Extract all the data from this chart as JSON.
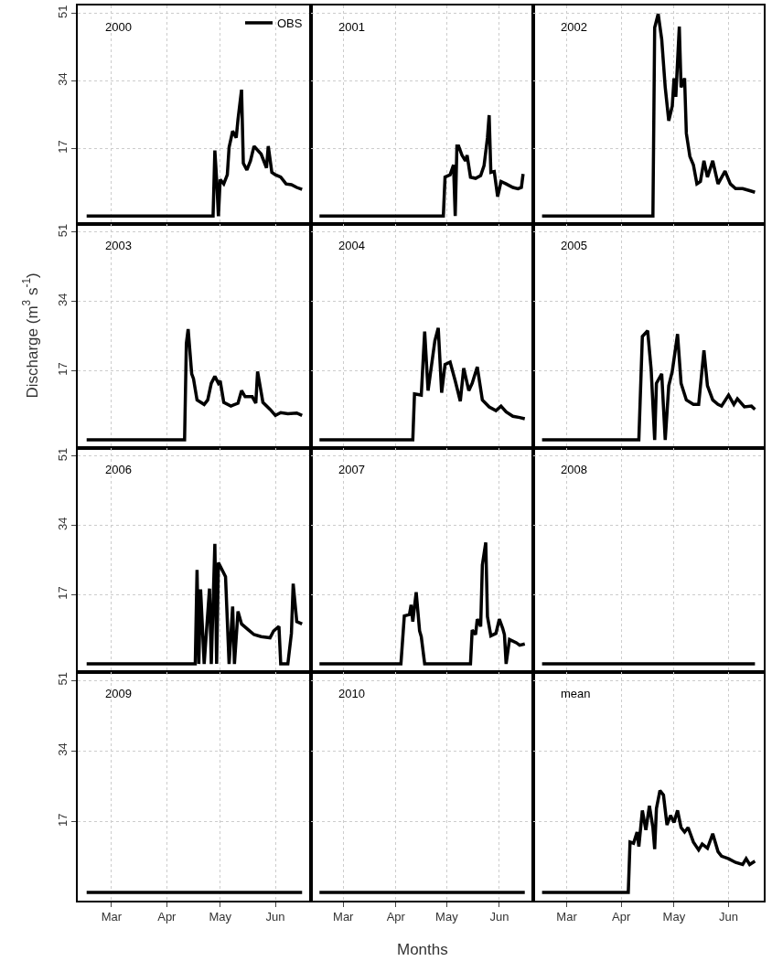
{
  "chart_data": [
    {
      "type": "line",
      "title": "2000",
      "legend": "top right",
      "tick_labels": "y",
      "grid": true,
      "line_style": "solid",
      "xlim": [
        "--02-10",
        "--06-21"
      ],
      "xticks": [
        {
          "value": "--03-01",
          "label": "Mar"
        },
        {
          "value": "--04-01",
          "label": "Apr"
        },
        {
          "value": "--05-01",
          "label": "May"
        },
        {
          "value": "--06-01",
          "label": "Jun"
        }
      ],
      "ylim": [
        -2,
        53
      ],
      "yticks": [
        17,
        34,
        51
      ],
      "x": [
        "--02-15",
        "--04-27",
        "--04-28",
        "--04-29",
        "--04-30",
        "--05-01",
        "--05-03",
        "--05-05",
        "--05-06",
        "--05-08",
        "--05-10",
        "--05-11",
        "--05-13",
        "--05-14",
        "--05-16",
        "--05-18",
        "--05-20",
        "--05-24",
        "--05-27",
        "--05-28",
        "--05-30",
        "--06-01",
        "--06-04",
        "--06-07",
        "--06-10",
        "--06-13",
        "--06-16"
      ],
      "series": [
        {
          "name": "OBS",
          "color": "#000000",
          "values": [
            0,
            0,
            16.5,
            9.2,
            0,
            9.2,
            8.1,
            10.4,
            17.3,
            21.4,
            19.7,
            24.3,
            31.8,
            13.3,
            11.6,
            13.9,
            17.6,
            15.6,
            12.1,
            17.6,
            11.0,
            10.4,
            9.8,
            8.1,
            7.9,
            7.2,
            6.7
          ]
        }
      ]
    },
    {
      "type": "line",
      "title": "2001",
      "tick_labels": false,
      "grid": true,
      "line_style": "solid",
      "xlim": [
        "--02-10",
        "--06-21"
      ],
      "xticks": [
        {
          "value": "--03-01",
          "label": "Mar"
        },
        {
          "value": "--04-01",
          "label": "Apr"
        },
        {
          "value": "--05-01",
          "label": "May"
        },
        {
          "value": "--06-01",
          "label": "Jun"
        }
      ],
      "ylim": [
        -2,
        53
      ],
      "yticks": [
        17,
        34,
        51
      ],
      "x": [
        "--02-15",
        "--04-29",
        "--04-30",
        "--05-03",
        "--05-05",
        "--05-06",
        "--05-07",
        "--05-08",
        "--05-10",
        "--05-12",
        "--05-13",
        "--05-15",
        "--05-18",
        "--05-21",
        "--05-23",
        "--05-25",
        "--05-26",
        "--05-27",
        "--05-29",
        "--05-31",
        "--06-02",
        "--06-05",
        "--06-09",
        "--06-12",
        "--06-14",
        "--06-15"
      ],
      "series": [
        {
          "color": "#000000",
          "values": [
            0,
            0,
            9.8,
            10.4,
            12.9,
            0,
            17.6,
            17.6,
            15.3,
            13.9,
            15.3,
            9.8,
            9.5,
            10.2,
            12.7,
            19.7,
            25.4,
            11.0,
            11.2,
            4.9,
            8.7,
            8.1,
            7.2,
            6.9,
            7.2,
            10.6
          ]
        }
      ]
    },
    {
      "type": "line",
      "title": "2002",
      "tick_labels": false,
      "grid": true,
      "line_style": "solid",
      "xlim": [
        "--02-10",
        "--06-21"
      ],
      "xticks": [
        {
          "value": "--03-01",
          "label": "Mar"
        },
        {
          "value": "--04-01",
          "label": "Apr"
        },
        {
          "value": "--05-01",
          "label": "May"
        },
        {
          "value": "--06-01",
          "label": "Jun"
        }
      ],
      "ylim": [
        -2,
        53
      ],
      "yticks": [
        17,
        34,
        51
      ],
      "x": [
        "--02-15",
        "--04-19",
        "--04-20",
        "--04-22",
        "--04-24",
        "--04-26",
        "--04-28",
        "--04-30",
        "--05-01",
        "--05-02",
        "--05-04",
        "--05-05",
        "--05-07",
        "--05-08",
        "--05-10",
        "--05-12",
        "--05-14",
        "--05-16",
        "--05-18",
        "--05-20",
        "--05-23",
        "--05-26",
        "--05-30",
        "--06-02",
        "--06-05",
        "--06-09",
        "--06-13",
        "--06-16"
      ],
      "series": [
        {
          "color": "#000000",
          "values": [
            0,
            0,
            47.4,
            50.9,
            44.5,
            32.4,
            24.0,
            27.7,
            34.7,
            30.0,
            47.7,
            32.4,
            34.7,
            20.8,
            15.0,
            12.9,
            8.1,
            8.7,
            13.9,
            9.8,
            13.9,
            8.1,
            11.3,
            8.1,
            6.9,
            6.9,
            6.4,
            6.0
          ]
        }
      ]
    },
    {
      "type": "line",
      "title": "2003",
      "ylabel": "Discharge (m$^{3}$ s$^{-1}$)",
      "tick_labels": "y",
      "grid": true,
      "line_style": "solid",
      "xlim": [
        "--02-10",
        "--06-21"
      ],
      "xticks": [
        {
          "value": "--03-01",
          "label": "Mar"
        },
        {
          "value": "--04-01",
          "label": "Apr"
        },
        {
          "value": "--05-01",
          "label": "May"
        },
        {
          "value": "--06-01",
          "label": "Jun"
        }
      ],
      "ylim": [
        -2,
        53
      ],
      "yticks": [
        17,
        34,
        51
      ],
      "x": [
        "--02-15",
        "--04-11",
        "--04-12",
        "--04-13",
        "--04-15",
        "--04-16",
        "--04-18",
        "--04-22",
        "--04-24",
        "--04-26",
        "--04-28",
        "--04-30",
        "--05-01",
        "--05-03",
        "--05-07",
        "--05-11",
        "--05-13",
        "--05-15",
        "--05-19",
        "--05-21",
        "--05-22",
        "--05-25",
        "--05-29",
        "--06-01",
        "--06-04",
        "--06-08",
        "--06-13",
        "--06-16"
      ],
      "series": [
        {
          "color": "#000000",
          "values": [
            0,
            0,
            23.7,
            27.2,
            16.2,
            15.0,
            9.8,
            8.7,
            9.8,
            13.9,
            15.6,
            13.9,
            14.5,
            9.2,
            8.3,
            9.0,
            12.1,
            10.6,
            10.6,
            9.0,
            16.8,
            9.2,
            7.5,
            6.0,
            6.7,
            6.4,
            6.6,
            6.0
          ]
        }
      ]
    },
    {
      "type": "line",
      "title": "2004",
      "tick_labels": false,
      "grid": true,
      "line_style": "solid",
      "xlim": [
        "--02-10",
        "--06-21"
      ],
      "xticks": [
        {
          "value": "--03-01",
          "label": "Mar"
        },
        {
          "value": "--04-01",
          "label": "Apr"
        },
        {
          "value": "--05-01",
          "label": "May"
        },
        {
          "value": "--06-01",
          "label": "Jun"
        }
      ],
      "ylim": [
        -2,
        53
      ],
      "yticks": [
        17,
        34,
        51
      ],
      "x": [
        "--02-15",
        "--04-11",
        "--04-12",
        "--04-16",
        "--04-18",
        "--04-20",
        "--04-24",
        "--04-26",
        "--04-28",
        "--04-30",
        "--05-03",
        "--05-06",
        "--05-09",
        "--05-11",
        "--05-14",
        "--05-16",
        "--05-19",
        "--05-22",
        "--05-26",
        "--05-30",
        "--06-02",
        "--06-05",
        "--06-09",
        "--06-13",
        "--06-16"
      ],
      "series": [
        {
          "color": "#000000",
          "values": [
            0,
            0,
            11.3,
            11.0,
            26.6,
            12.1,
            24.3,
            27.5,
            11.6,
            18.5,
            19.1,
            14.5,
            9.5,
            17.6,
            12.1,
            13.9,
            17.9,
            9.8,
            8.1,
            7.2,
            8.3,
            6.9,
            5.8,
            5.5,
            5.2
          ]
        }
      ]
    },
    {
      "type": "line",
      "title": "2005",
      "tick_labels": false,
      "grid": true,
      "line_style": "solid",
      "xlim": [
        "--02-10",
        "--06-21"
      ],
      "xticks": [
        {
          "value": "--03-01",
          "label": "Mar"
        },
        {
          "value": "--04-01",
          "label": "Apr"
        },
        {
          "value": "--05-01",
          "label": "May"
        },
        {
          "value": "--06-01",
          "label": "Jun"
        }
      ],
      "ylim": [
        -2,
        53
      ],
      "yticks": [
        17,
        34,
        51
      ],
      "x": [
        "--02-15",
        "--04-11",
        "--04-13",
        "--04-16",
        "--04-18",
        "--04-20",
        "--04-21",
        "--04-24",
        "--04-26",
        "--04-28",
        "--04-30",
        "--05-03",
        "--05-05",
        "--05-08",
        "--05-12",
        "--05-15",
        "--05-18",
        "--05-20",
        "--05-23",
        "--05-26",
        "--05-28",
        "--06-01",
        "--06-04",
        "--06-06",
        "--06-10",
        "--06-14",
        "--06-16"
      ],
      "series": [
        {
          "color": "#000000",
          "values": [
            0,
            0,
            25.4,
            26.8,
            17.3,
            0,
            13.9,
            16.2,
            0,
            13.3,
            16.8,
            26.0,
            13.9,
            9.8,
            8.7,
            8.7,
            22.0,
            13.3,
            9.8,
            8.7,
            8.3,
            11.0,
            8.7,
            10.1,
            8.1,
            8.3,
            7.5
          ]
        }
      ]
    },
    {
      "type": "line",
      "title": "2006",
      "tick_labels": "y",
      "grid": true,
      "line_style": "solid",
      "xlim": [
        "--02-10",
        "--06-21"
      ],
      "xticks": [
        {
          "value": "--03-01",
          "label": "Mar"
        },
        {
          "value": "--04-01",
          "label": "Apr"
        },
        {
          "value": "--05-01",
          "label": "May"
        },
        {
          "value": "--06-01",
          "label": "Jun"
        }
      ],
      "ylim": [
        -2,
        53
      ],
      "yticks": [
        17,
        34,
        51
      ],
      "x": [
        "--02-15",
        "--04-17",
        "--04-18",
        "--04-19",
        "--04-20",
        "--04-22",
        "--04-25",
        "--04-26",
        "--04-28",
        "--04-29",
        "--04-30",
        "--05-04",
        "--05-06",
        "--05-08",
        "--05-09",
        "--05-11",
        "--05-13",
        "--05-17",
        "--05-20",
        "--05-24",
        "--05-29",
        "--05-31",
        "--06-03",
        "--06-04",
        "--06-08",
        "--06-10",
        "--06-11",
        "--06-13",
        "--06-16"
      ],
      "series": [
        {
          "color": "#000000",
          "values": [
            0,
            0,
            23.1,
            0,
            18.3,
            0,
            18.5,
            0,
            29.5,
            0,
            24.9,
            21.4,
            0,
            14.1,
            0,
            12.9,
            9.8,
            8.3,
            7.2,
            6.7,
            6.4,
            8.1,
            9.2,
            0,
            0,
            7.5,
            19.7,
            10.4,
            9.8
          ]
        }
      ]
    },
    {
      "type": "line",
      "title": "2007",
      "tick_labels": false,
      "grid": true,
      "line_style": "solid",
      "xlim": [
        "--02-10",
        "--06-21"
      ],
      "xticks": [
        {
          "value": "--03-01",
          "label": "Mar"
        },
        {
          "value": "--04-01",
          "label": "Apr"
        },
        {
          "value": "--05-01",
          "label": "May"
        },
        {
          "value": "--06-01",
          "label": "Jun"
        }
      ],
      "ylim": [
        -2,
        53
      ],
      "yticks": [
        17,
        34,
        51
      ],
      "x": [
        "--02-15",
        "--04-04",
        "--04-06",
        "--04-09",
        "--04-10",
        "--04-11",
        "--04-13",
        "--04-15",
        "--04-16",
        "--04-18",
        "--05-15",
        "--05-16",
        "--05-18",
        "--05-19",
        "--05-21",
        "--05-22",
        "--05-24",
        "--05-25",
        "--05-27",
        "--05-30",
        "--06-01",
        "--06-03",
        "--06-04",
        "--06-05",
        "--06-07",
        "--06-11",
        "--06-13",
        "--06-16"
      ],
      "series": [
        {
          "color": "#000000",
          "values": [
            0,
            0,
            11.8,
            12.1,
            14.5,
            10.4,
            17.6,
            8.1,
            6.7,
            0,
            0,
            8.3,
            7.2,
            11.0,
            9.2,
            24.3,
            29.8,
            11.6,
            6.9,
            7.5,
            11.0,
            8.7,
            7.2,
            0,
            6.0,
            5.2,
            4.6,
            4.9
          ]
        }
      ]
    },
    {
      "type": "line",
      "title": "2008",
      "tick_labels": false,
      "grid": true,
      "line_style": "solid",
      "xlim": [
        "--02-10",
        "--06-21"
      ],
      "xticks": [
        {
          "value": "--03-01",
          "label": "Mar"
        },
        {
          "value": "--04-01",
          "label": "Apr"
        },
        {
          "value": "--05-01",
          "label": "May"
        },
        {
          "value": "--06-01",
          "label": "Jun"
        }
      ],
      "ylim": [
        -2,
        53
      ],
      "yticks": [
        17,
        34,
        51
      ],
      "x": [
        "--02-15",
        "--06-16"
      ],
      "series": [
        {
          "color": "#000000",
          "values": [
            0,
            0
          ]
        }
      ]
    },
    {
      "type": "line",
      "title": "2009",
      "grid": true,
      "line_style": "solid",
      "xlim": [
        "--02-10",
        "--06-21"
      ],
      "xticks": [
        {
          "value": "--03-01",
          "label": "Mar"
        },
        {
          "value": "--04-01",
          "label": "Apr"
        },
        {
          "value": "--05-01",
          "label": "May"
        },
        {
          "value": "--06-01",
          "label": "Jun"
        }
      ],
      "ylim": [
        -2,
        53
      ],
      "yticks": [
        17,
        34,
        51
      ],
      "x": [
        "--02-15",
        "--06-16"
      ],
      "series": [
        {
          "color": "#000000",
          "values": [
            0,
            0
          ]
        }
      ]
    },
    {
      "type": "line",
      "title": "2010",
      "xlabel": "Months",
      "tick_labels": "x",
      "grid": true,
      "line_style": "solid",
      "xlim": [
        "--02-10",
        "--06-21"
      ],
      "xticks": [
        {
          "value": "--03-01",
          "label": "Mar"
        },
        {
          "value": "--04-01",
          "label": "Apr"
        },
        {
          "value": "--05-01",
          "label": "May"
        },
        {
          "value": "--06-01",
          "label": "Jun"
        }
      ],
      "ylim": [
        -2,
        53
      ],
      "yticks": [
        17,
        34,
        51
      ],
      "x": [
        "--02-15",
        "--06-16"
      ],
      "series": [
        {
          "color": "#000000",
          "values": [
            0,
            0
          ]
        }
      ]
    },
    {
      "type": "line",
      "title": "mean",
      "tick_labels": "x",
      "grid": true,
      "line_style": "solid",
      "xlim": [
        "--02-10",
        "--06-21"
      ],
      "xticks": [
        {
          "value": "--03-01",
          "label": "Mar"
        },
        {
          "value": "--04-01",
          "label": "Apr"
        },
        {
          "value": "--05-01",
          "label": "May"
        },
        {
          "value": "--06-01",
          "label": "Jun"
        }
      ],
      "ylim": [
        -2,
        53
      ],
      "yticks": [
        17,
        34,
        51
      ],
      "x": [
        "--02-15",
        "--04-05",
        "--04-06",
        "--04-08",
        "--04-10",
        "--04-11",
        "--04-13",
        "--04-15",
        "--04-17",
        "--04-19",
        "--04-20",
        "--04-21",
        "--04-23",
        "--04-25",
        "--04-27",
        "--04-29",
        "--05-01",
        "--05-03",
        "--05-05",
        "--05-07",
        "--05-09",
        "--05-12",
        "--05-15",
        "--05-17",
        "--05-20",
        "--05-23",
        "--05-26",
        "--05-28",
        "--06-01",
        "--06-05",
        "--06-09",
        "--06-11",
        "--06-13",
        "--06-16"
      ],
      "series": [
        {
          "color": "#000000",
          "values": [
            0,
            0,
            12.1,
            11.8,
            14.5,
            11.0,
            19.7,
            15.0,
            20.8,
            15.6,
            10.4,
            20.2,
            24.5,
            23.4,
            16.2,
            18.5,
            16.8,
            19.7,
            15.6,
            14.5,
            15.6,
            12.1,
            10.2,
            11.6,
            10.6,
            14.1,
            9.8,
            8.7,
            8.1,
            7.2,
            6.7,
            8.1,
            6.7,
            7.5
          ]
        }
      ]
    }
  ]
}
